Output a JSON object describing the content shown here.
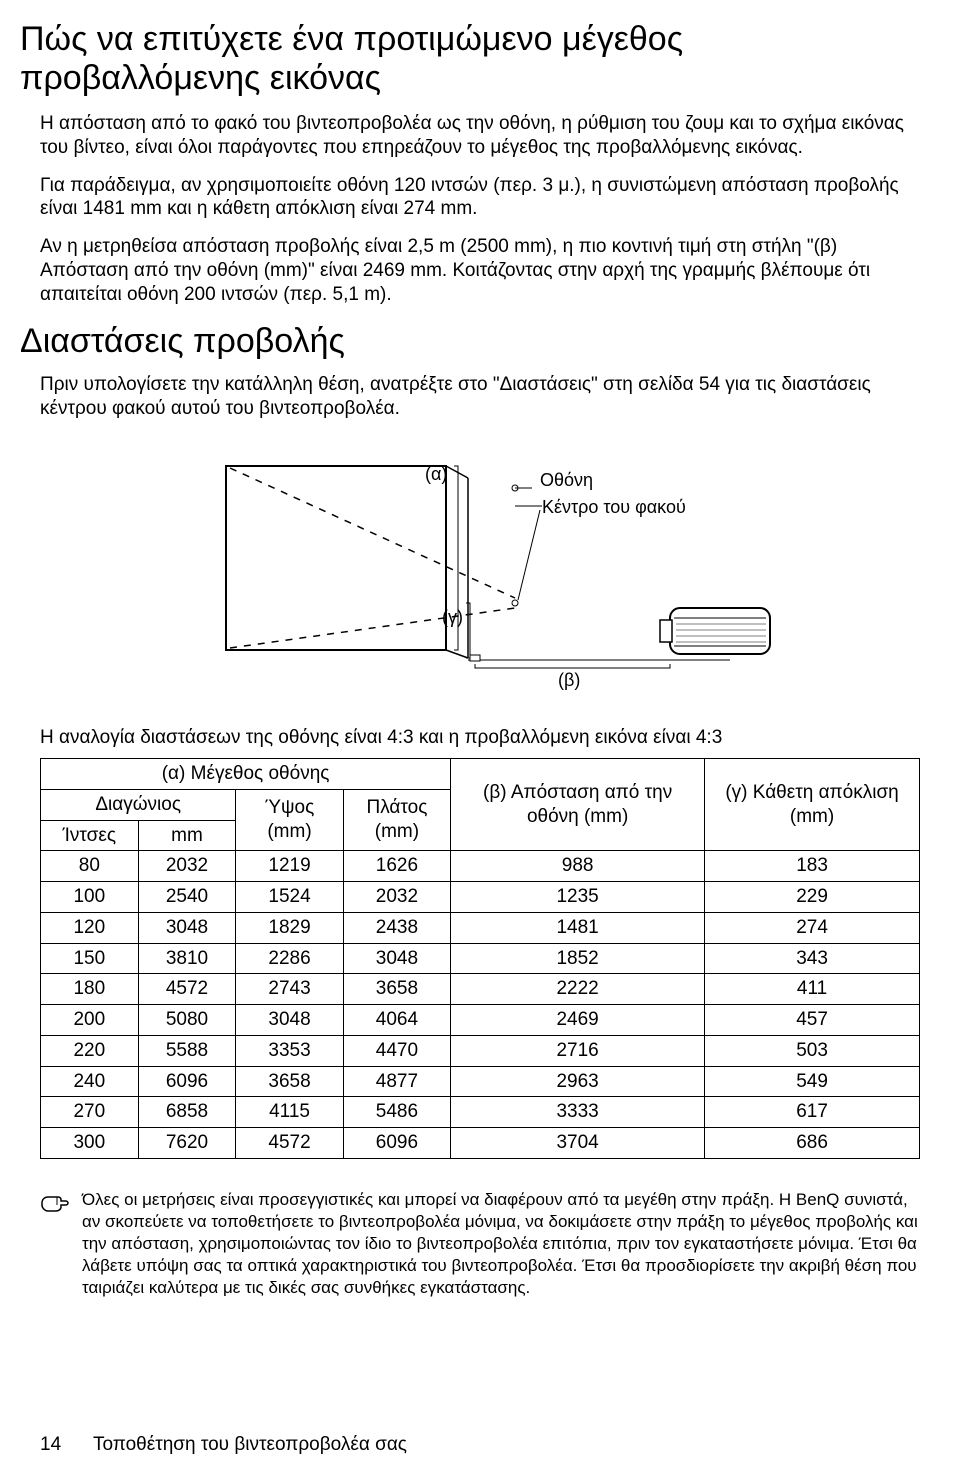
{
  "heading1": "Πώς να επιτύχετε ένα προτιμώμενο μέγεθος προβαλλόμενης εικόνας",
  "para1": "Η απόσταση από το φακό του βιντεοπροβολέα ως την οθόνη, η ρύθμιση του ζουμ και το σχήμα εικόνας του βίντεο, είναι όλοι παράγοντες που επηρεάζουν το μέγεθος της προβαλλόμενης εικόνας.",
  "para2": "Για παράδειγμα, αν χρησιμοποιείτε οθόνη 120 ιντσών (περ. 3 μ.), η συνιστώμενη απόσταση προβολής είναι 1481 mm και η κάθετη απόκλιση είναι 274 mm.",
  "para3": "Αν η μετρηθείσα απόσταση προβολής είναι 2,5 m (2500 mm), η πιο κοντινή τιμή στη στήλη \"(β) Απόσταση από την οθόνη (mm)\" είναι 2469 mm. Κοιτάζοντας στην αρχή της γραμμής βλέπουμε ότι απαιτείται οθόνη 200 ιντσών (περ. 5,1 m).",
  "heading2": "Διαστάσεις προβολής",
  "para4": "Πριν υπολογίσετε την κατάλληλη θέση, ανατρέξτε στο \"Διαστάσεις\" στη σελίδα 54 για τις διαστάσεις κέντρου φακού αυτού του βιντεοπροβολέα.",
  "diagram": {
    "label_a": "(α)",
    "label_b": "(β)",
    "label_c": "(γ)",
    "label_screen": "Οθόνη",
    "label_lens_center": "Κέντρο του φακού",
    "stroke": "#000000",
    "dash": "6,6"
  },
  "table_intro": "Η αναλογία διαστάσεων της οθόνης είναι 4:3 και η προβαλλόμενη εικόνα είναι 4:3",
  "table": {
    "headers": {
      "screen_size": "(α) Μέγεθος οθόνης",
      "diagonal": "Διαγώνιος",
      "inches": "Ίντσες",
      "mm": "mm",
      "height": "Ύψος (mm)",
      "width": "Πλάτος (mm)",
      "distance": "(β) Απόσταση από την οθόνη (mm)",
      "offset": "(γ) Κάθετη απόκλιση (mm)"
    },
    "rows": [
      {
        "inches": "80",
        "mm": "2032",
        "h": "1219",
        "w": "1626",
        "dist": "988",
        "off": "183"
      },
      {
        "inches": "100",
        "mm": "2540",
        "h": "1524",
        "w": "2032",
        "dist": "1235",
        "off": "229"
      },
      {
        "inches": "120",
        "mm": "3048",
        "h": "1829",
        "w": "2438",
        "dist": "1481",
        "off": "274"
      },
      {
        "inches": "150",
        "mm": "3810",
        "h": "2286",
        "w": "3048",
        "dist": "1852",
        "off": "343"
      },
      {
        "inches": "180",
        "mm": "4572",
        "h": "2743",
        "w": "3658",
        "dist": "2222",
        "off": "411"
      },
      {
        "inches": "200",
        "mm": "5080",
        "h": "3048",
        "w": "4064",
        "dist": "2469",
        "off": "457"
      },
      {
        "inches": "220",
        "mm": "5588",
        "h": "3353",
        "w": "4470",
        "dist": "2716",
        "off": "503"
      },
      {
        "inches": "240",
        "mm": "6096",
        "h": "3658",
        "w": "4877",
        "dist": "2963",
        "off": "549"
      },
      {
        "inches": "270",
        "mm": "6858",
        "h": "4115",
        "w": "5486",
        "dist": "3333",
        "off": "617"
      },
      {
        "inches": "300",
        "mm": "7620",
        "h": "4572",
        "w": "6096",
        "dist": "3704",
        "off": "686"
      }
    ]
  },
  "note": "Όλες οι μετρήσεις είναι προσεγγιστικές και μπορεί να διαφέρουν από τα μεγέθη στην πράξη. Η BenQ συνιστά, αν σκοπεύετε να τοποθετήσετε το βιντεοπροβολέα μόνιμα, να δοκιμάσετε στην πράξη το μέγεθος προβολής και την απόσταση, χρησιμοποιώντας τον ίδιο το βιντεοπροβολέα επιτόπια, πριν τον εγκαταστήσετε μόνιμα. Έτσι θα λάβετε υπόψη σας τα οπτικά χαρακτηριστικά του βιντεοπροβολέα. Έτσι θα προσδιορίσετε την ακριβή θέση που ταιριάζει καλύτερα με τις δικές σας συνθήκες εγκατάστασης.",
  "footer": {
    "page": "14",
    "section": "Τοποθέτηση του βιντεοπροβολέα σας"
  }
}
